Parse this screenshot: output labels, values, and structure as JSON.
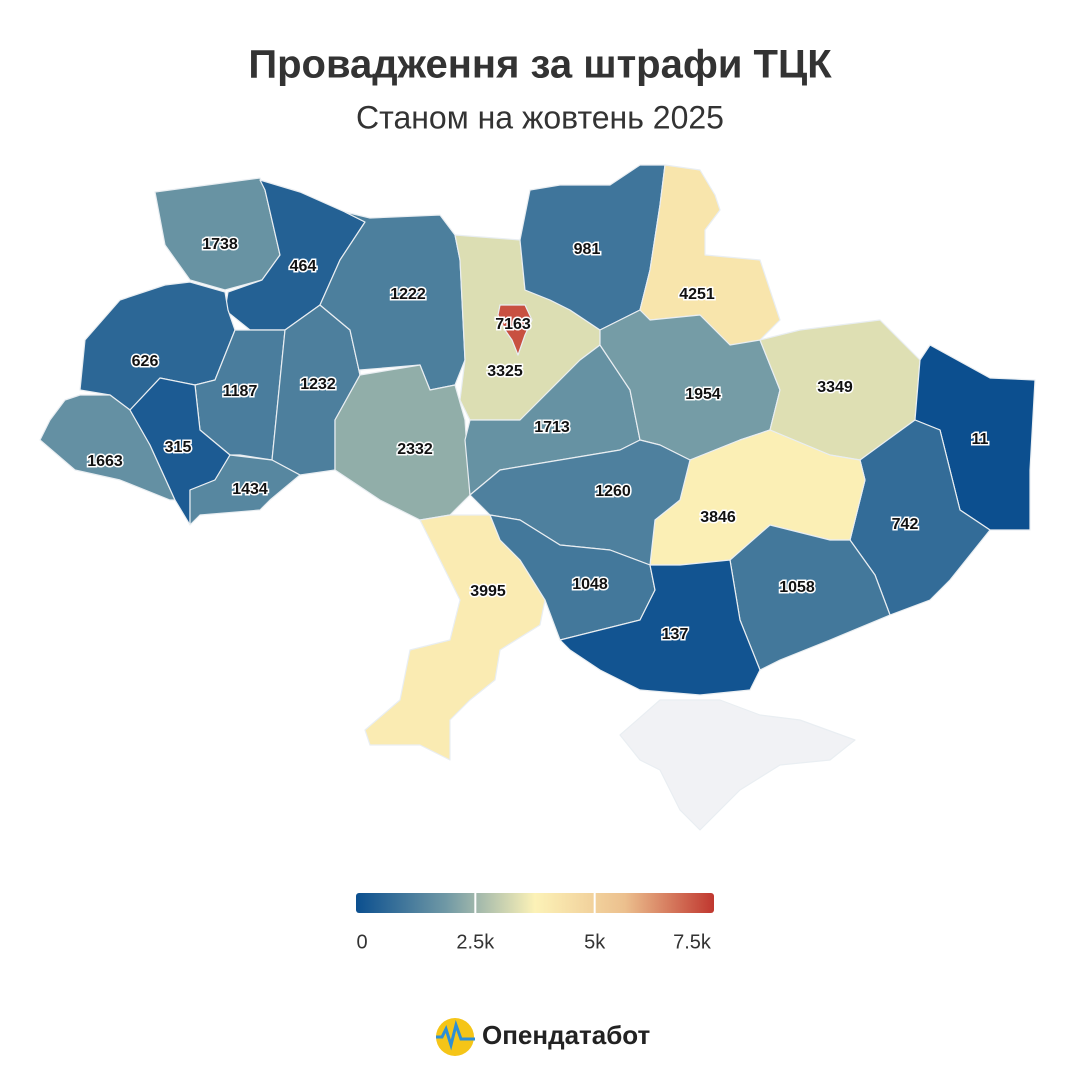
{
  "chart_data": {
    "type": "choropleth",
    "title": "Провадження за штрафи ТЦК",
    "subtitle": "Станом на жовтень 2025",
    "values": [
      1738,
      464,
      626,
      1187,
      1232,
      1663,
      315,
      1434,
      1222,
      2332,
      3325,
      7163,
      981,
      4251,
      1713,
      1954,
      3349,
      11,
      742,
      3846,
      1260,
      3995,
      1048,
      1058,
      137
    ],
    "colorscale": [
      {
        "value": 0,
        "color": "#0b4f8f"
      },
      {
        "value": 1875,
        "color": "#6f98a5"
      },
      {
        "value": 3750,
        "color": "#fcf2b7"
      },
      {
        "value": 5625,
        "color": "#ecc08e"
      },
      {
        "value": 7500,
        "color": "#c0372f"
      }
    ],
    "lim": [
      0,
      7500
    ],
    "ticks": [
      0,
      {
        "value": 2500,
        "label": "2.5k"
      },
      {
        "value": 5000,
        "label": "5k"
      },
      {
        "value": 7500,
        "label": "7.5k"
      }
    ],
    "brand": "Опендатабот"
  }
}
